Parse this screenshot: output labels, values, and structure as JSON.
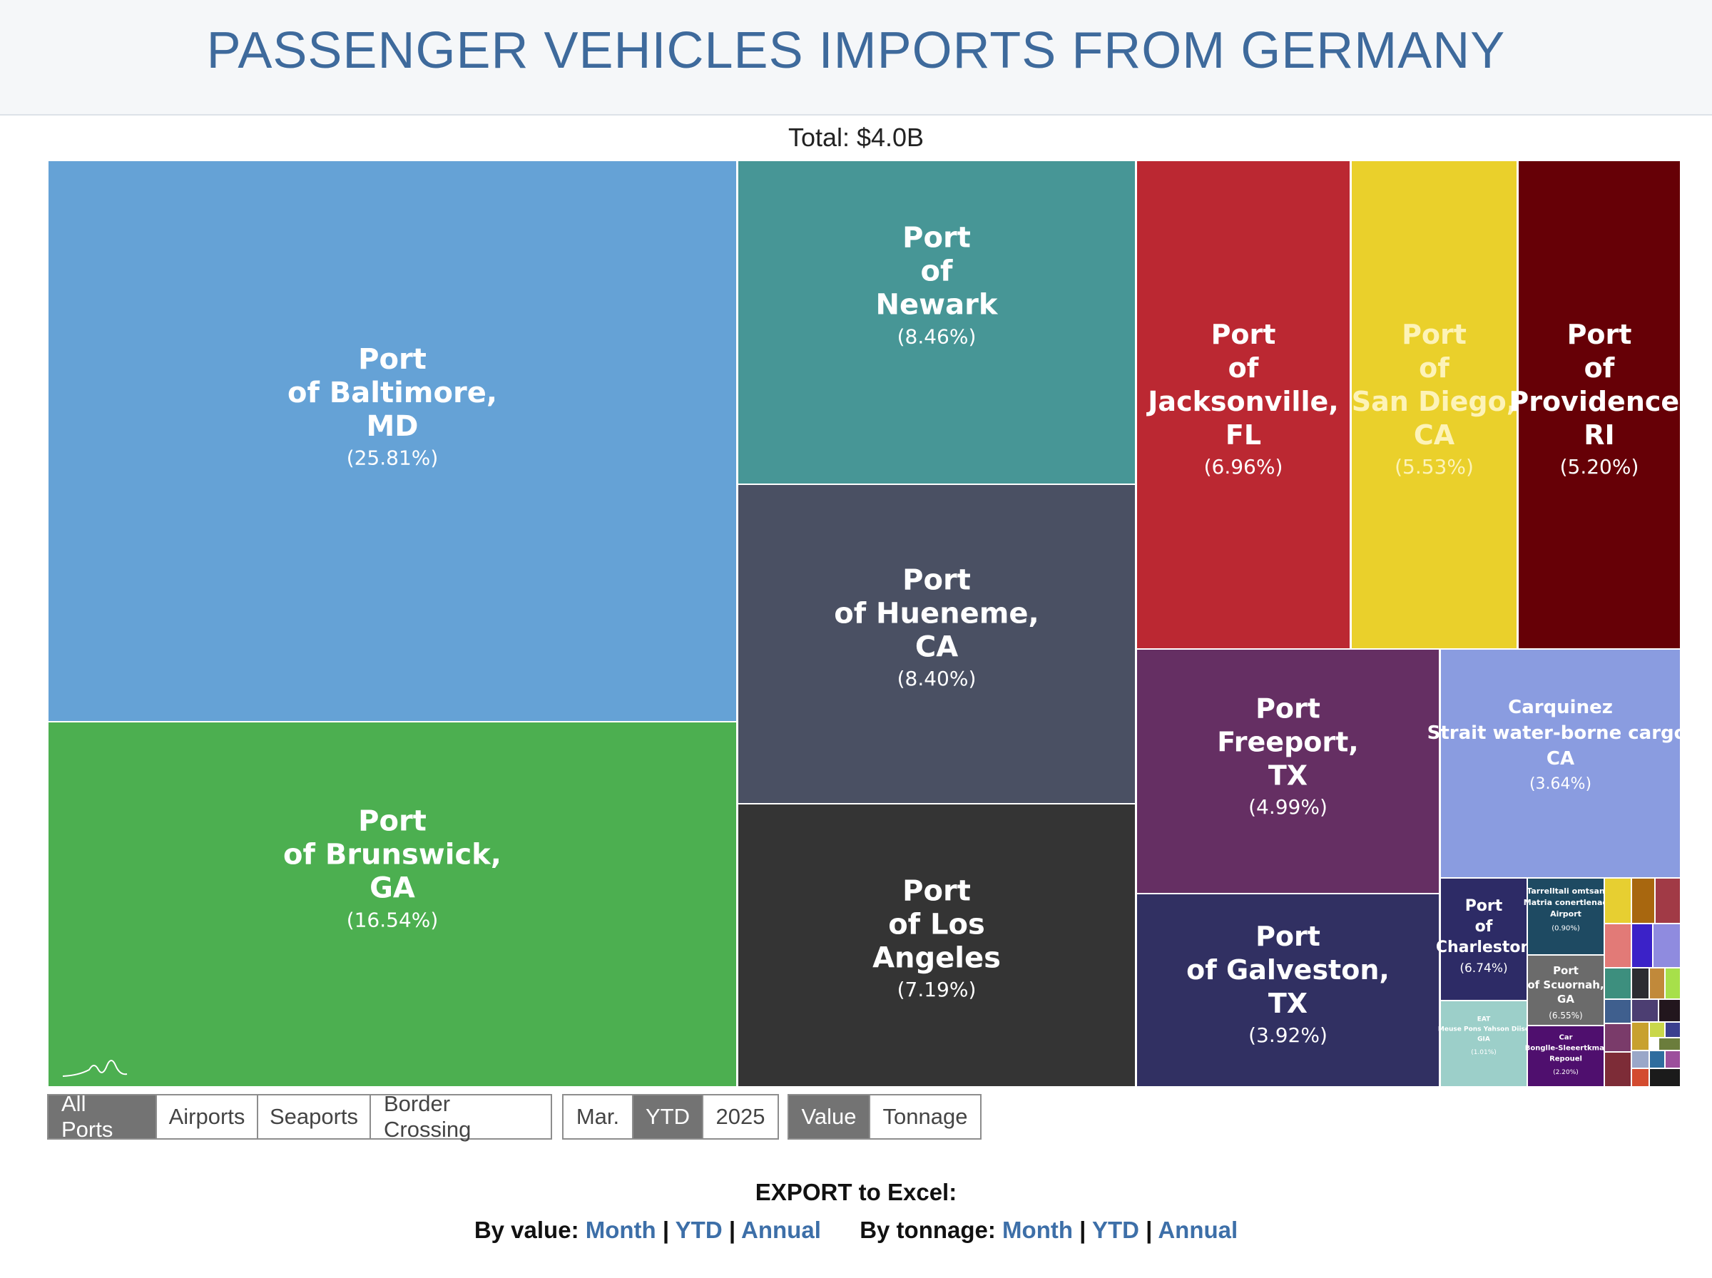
{
  "header": {
    "title": "PASSENGER VEHICLES IMPORTS FROM GERMANY"
  },
  "total_label": "Total: $4.0B",
  "chart_data": {
    "type": "treemap",
    "title": "PASSENGER VEHICLES IMPORTS FROM GERMANY",
    "total": "Total: $4.0B",
    "items": [
      {
        "name": "Port of Baltimore, MD",
        "lines": [
          "Port",
          "of Baltimore,",
          "MD"
        ],
        "pct_label": "(25.81%)",
        "share": 25.81,
        "color": "#65a2d6"
      },
      {
        "name": "Port of Brunswick, GA",
        "lines": [
          "Port",
          "of Brunswick,",
          "GA"
        ],
        "pct_label": "(16.54%)",
        "share": 16.54,
        "color": "#4caf50"
      },
      {
        "name": "Port of Newark",
        "lines": [
          "Port",
          "of",
          "Newark"
        ],
        "pct_label": "(8.46%)",
        "share": 8.46,
        "color": "#479696"
      },
      {
        "name": "Port of Hueneme, CA",
        "lines": [
          "Port",
          "of Hueneme,",
          "CA"
        ],
        "pct_label": "(8.40%)",
        "share": 8.4,
        "color": "#4a5063"
      },
      {
        "name": "Port of Los Angeles",
        "lines": [
          "Port",
          "of Los",
          "Angeles"
        ],
        "pct_label": "(7.19%)",
        "share": 7.19,
        "color": "#343434"
      },
      {
        "name": "Port of Jacksonville, FL",
        "lines": [
          "Port",
          "of",
          "Jacksonville,",
          "FL"
        ],
        "pct_label": "(6.96%)",
        "share": 6.96,
        "color": "#bb2832"
      },
      {
        "name": "Port of San Diego, CA",
        "lines": [
          "Port",
          "of",
          "San Diego,",
          "CA"
        ],
        "pct_label": "(5.53%)",
        "share": 5.53,
        "color": "#ead02b"
      },
      {
        "name": "Port of Providence, RI",
        "lines": [
          "Port",
          "of",
          "Providence,",
          "RI"
        ],
        "pct_label": "(5.20%)",
        "share": 5.2,
        "color": "#660006"
      },
      {
        "name": "Port Freeport, TX",
        "lines": [
          "Port",
          "Freeport,",
          "TX"
        ],
        "pct_label": "(4.99%)",
        "share": 4.99,
        "color": "#652f63"
      },
      {
        "name": "Port of Galveston, TX",
        "lines": [
          "Port",
          "of Galveston,",
          "TX"
        ],
        "pct_label": "(3.92%)",
        "share": 3.92,
        "color": "#313062"
      },
      {
        "name": "Carquinez Strait water-borne cargo, CA",
        "lines": [
          "Carquinez",
          "Strait water-borne cargo,",
          "CA"
        ],
        "pct_label": "(3.64%)",
        "share": 3.64,
        "color": "#8a9ce0"
      },
      {
        "name": "Port of Charleston",
        "lines": [
          "Port",
          "of",
          "Charleston"
        ],
        "pct_label": "(6.74%)",
        "share": 6.74,
        "color": "#2d2b66"
      },
      {
        "name": "Tarrelltali omtsan Matria conertlenad Airport",
        "lines": [
          "Tarrelltali omtsan",
          "Matria conertlenad",
          "Airport"
        ],
        "pct_label": "(0.90%)",
        "share": 0.9,
        "color": "#1e4a62"
      },
      {
        "name": "Port of Scuornah, GA",
        "lines": [
          "Port",
          "of Scuornah,",
          "GA"
        ],
        "pct_label": "(6.55%)",
        "share": 6.55,
        "color": "#6b6b6b"
      },
      {
        "name": "EAT Meuse Pons Yahson Diiso GIA",
        "lines": [
          "EAT",
          "Meuse Pons Yahson Diiso",
          "GIA"
        ],
        "pct_label": "(1.01%)",
        "share": 1.01,
        "color": "#9ccfc9"
      },
      {
        "name": "Car Bonglle-Sleeertkmal Repouel",
        "lines": [
          "Car",
          "Bonglle-Sleeertkmal",
          "Repouel"
        ],
        "pct_label": "(2.20%)",
        "share": 2.2,
        "color": "#4f0f6e"
      }
    ],
    "small_tile_colors": [
      "#e7cf31",
      "#a8670f",
      "#a13a46",
      "#e27a77",
      "#3b22c8",
      "#8f8bdf",
      "#3d8f7e",
      "#2c2c32",
      "#c1893a",
      "#a7e04a",
      "#3f5f8e",
      "#4c3e72",
      "#22161d",
      "#7a3b6a",
      "#c8a12f",
      "#c9d74a",
      "#3b3f8f",
      "#7d2c37",
      "#9aa7c8",
      "#6b7d3c",
      "#d34b2f",
      "#2f6d9e",
      "#9c4f9c",
      "#1b1b1b"
    ]
  },
  "filters": {
    "port_type": [
      {
        "label": "All Ports",
        "active": true
      },
      {
        "label": "Airports",
        "active": false
      },
      {
        "label": "Seaports",
        "active": false
      },
      {
        "label": "Border Crossing",
        "active": false
      }
    ],
    "period": [
      {
        "label": "Mar.",
        "active": false
      },
      {
        "label": "YTD",
        "active": true
      },
      {
        "label": "2025",
        "active": false
      }
    ],
    "measure": [
      {
        "label": "Value",
        "active": true
      },
      {
        "label": "Tonnage",
        "active": false
      }
    ]
  },
  "export": {
    "title": "EXPORT to Excel:",
    "by_value_label": "By value:",
    "by_tonnage_label": "By tonnage:",
    "month": "Month",
    "ytd": "YTD",
    "annual": "Annual",
    "separator": "|"
  }
}
